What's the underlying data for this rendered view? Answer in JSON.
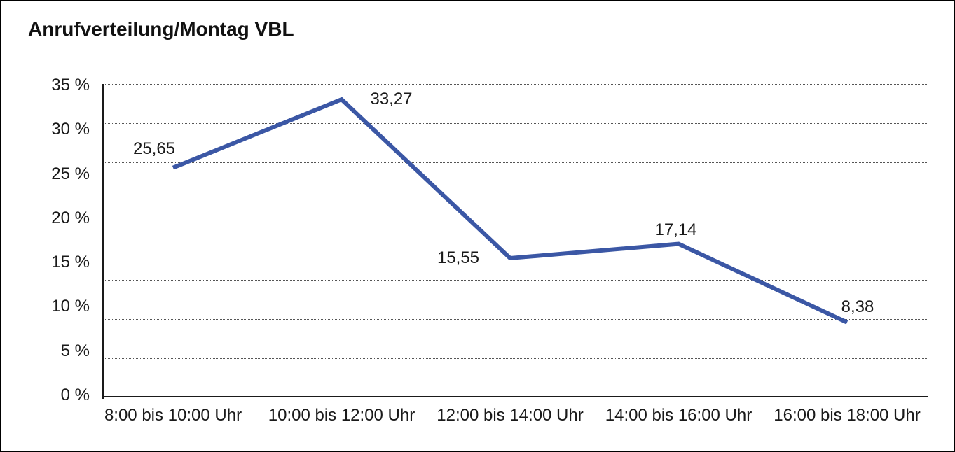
{
  "title": "Anrufverteilung/Montag VBL",
  "colors": {
    "line": "#3b57a5",
    "axis": "#1a1a1a",
    "grid": "#555555",
    "text": "#1a1a1a",
    "background": "#ffffff"
  },
  "chart_data": {
    "type": "line",
    "title": "Anrufverteilung/Montag VBL",
    "categories": [
      "8:00 bis 10:00 Uhr",
      "10:00 bis 12:00 Uhr",
      "12:00 bis 14:00 Uhr",
      "14:00 bis 16:00 Uhr",
      "16:00 bis 18:00 Uhr"
    ],
    "values": [
      25.65,
      33.27,
      15.55,
      17.14,
      8.38
    ],
    "value_labels": [
      "25,65",
      "33,27",
      "15,55",
      "17,14",
      "8,38"
    ],
    "yticks": [
      "35 %",
      "30 %",
      "25 %",
      "20 %",
      "15 %",
      "10 %",
      "5 %",
      "0 %"
    ],
    "xlabel": "",
    "ylabel": "",
    "ylim": [
      0,
      35
    ],
    "grid": true,
    "legend": false
  }
}
